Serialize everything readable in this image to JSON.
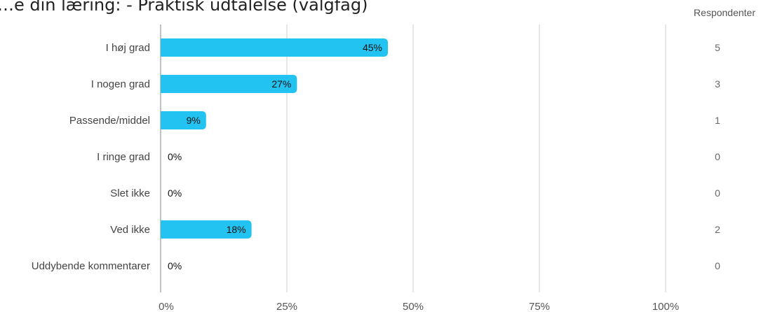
{
  "chart_data": {
    "type": "bar",
    "orientation": "horizontal",
    "title": "…e din læring: - Praktisk udtalelse (valgfag)",
    "respondents_header": "Respondenter",
    "categories": [
      "I høj grad",
      "I nogen grad",
      "Passende/middel",
      "I ringe grad",
      "Slet ikke",
      "Ved ikke",
      "Uddybende kommentarer"
    ],
    "values": [
      45,
      27,
      9,
      0,
      0,
      18,
      0
    ],
    "value_labels": [
      "45%",
      "27%",
      "9%",
      "0%",
      "0%",
      "18%",
      "0%"
    ],
    "counts": [
      5,
      3,
      1,
      0,
      0,
      2,
      0
    ],
    "x_ticks": [
      "0%",
      "25%",
      "50%",
      "75%",
      "100%"
    ],
    "xlim": [
      0,
      100
    ],
    "grid": true,
    "bar_color": "#22c3f0"
  }
}
